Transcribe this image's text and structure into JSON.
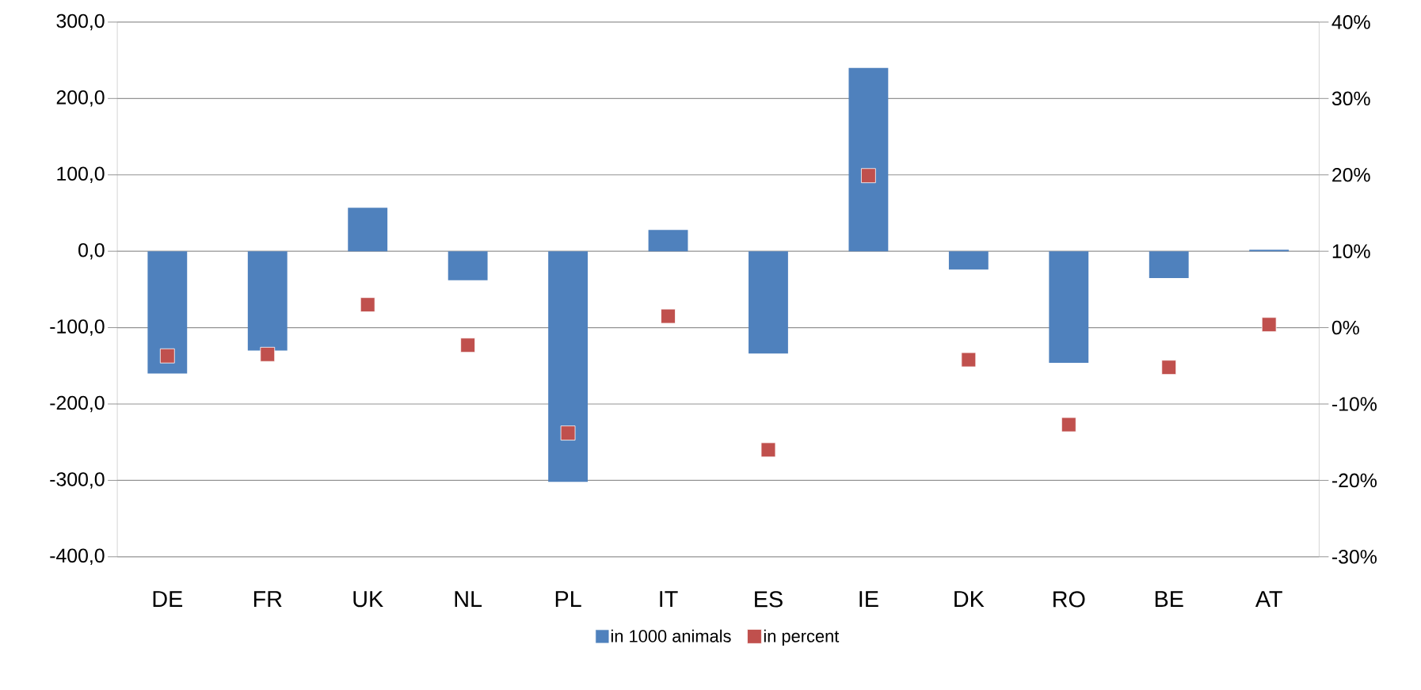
{
  "chart_data": {
    "type": "bar",
    "categories": [
      "DE",
      "FR",
      "UK",
      "NL",
      "PL",
      "IT",
      "ES",
      "IE",
      "DK",
      "RO",
      "BE",
      "AT"
    ],
    "series": [
      {
        "name": "in 1000 animals",
        "color": "#4f81bd",
        "values": [
          -160,
          -130,
          57,
          -38,
          -302,
          28,
          -134,
          240,
          -24,
          -146,
          -35,
          2
        ]
      },
      {
        "name": "in percent",
        "type": "scatter",
        "axis": "y2",
        "color": "#c0504d",
        "values": [
          -3.7,
          -3.5,
          3.0,
          -2.3,
          -13.8,
          1.5,
          -16.0,
          19.9,
          -4.2,
          -12.7,
          -5.2,
          0.4
        ]
      }
    ],
    "ylim": [
      -400,
      300
    ],
    "yticks": [
      {
        "value": -400,
        "label": "-400,0"
      },
      {
        "value": -300,
        "label": "-300,0"
      },
      {
        "value": -200,
        "label": "-200,0"
      },
      {
        "value": -100,
        "label": "-100,0"
      },
      {
        "value": 0,
        "label": "0,0"
      },
      {
        "value": 100,
        "label": "100,0"
      },
      {
        "value": 200,
        "label": "200,0"
      },
      {
        "value": 300,
        "label": "300,0"
      }
    ],
    "y2lim": [
      -30,
      40
    ],
    "y2ticks": [
      {
        "value": -30,
        "label": "-30%"
      },
      {
        "value": -20,
        "label": "-20%"
      },
      {
        "value": -10,
        "label": "-10%"
      },
      {
        "value": 0,
        "label": "0%"
      },
      {
        "value": 10,
        "label": "10%"
      },
      {
        "value": 20,
        "label": "20%"
      },
      {
        "value": 30,
        "label": "30%"
      },
      {
        "value": 40,
        "label": "40%"
      }
    ],
    "grid": "y",
    "legend": "bottom",
    "marker": "square"
  }
}
